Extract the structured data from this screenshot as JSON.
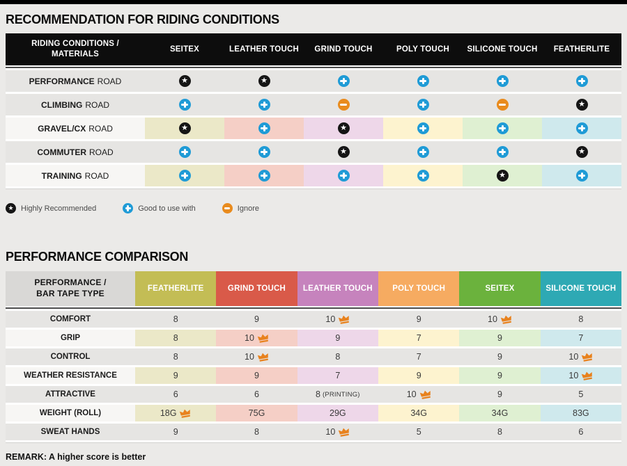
{
  "table1": {
    "title": "RECOMMENDATION FOR RIDING CONDITIONS",
    "header": {
      "label_line1": "RIDING CONDITIONS /",
      "label_line2": "MATERIALS"
    },
    "columns": [
      "SEITEX",
      "LEATHER TOUCH",
      "GRIND TOUCH",
      "POLY TOUCH",
      "SILICONE TOUCH",
      "FEATHERLITE"
    ],
    "cell_colors": [
      "#ebe8c8",
      "#f5cfc6",
      "#eed7e9",
      "#fdf3cf",
      "#dff0d2",
      "#cfe9ed"
    ],
    "rows": [
      {
        "condition": "PERFORMANCE",
        "suffix": "ROAD",
        "colored": false,
        "ratings": [
          "star",
          "star",
          "plus",
          "plus",
          "plus",
          "plus"
        ]
      },
      {
        "condition": "CLIMBING",
        "suffix": "ROAD",
        "colored": false,
        "ratings": [
          "plus",
          "plus",
          "minus",
          "plus",
          "minus",
          "star"
        ]
      },
      {
        "condition": "GRAVEL/CX",
        "suffix": "ROAD",
        "colored": true,
        "ratings": [
          "star",
          "plus",
          "star",
          "plus",
          "plus",
          "plus"
        ]
      },
      {
        "condition": "COMMUTER",
        "suffix": "ROAD",
        "colored": false,
        "ratings": [
          "plus",
          "plus",
          "star",
          "plus",
          "plus",
          "star"
        ]
      },
      {
        "condition": "TRAINING",
        "suffix": "ROAD",
        "colored": true,
        "ratings": [
          "plus",
          "plus",
          "plus",
          "plus",
          "star",
          "plus"
        ]
      }
    ]
  },
  "legend": {
    "items": [
      {
        "icon": "star",
        "label": "Highly Recommended"
      },
      {
        "icon": "plus",
        "label": "Good to use with"
      },
      {
        "icon": "minus",
        "label": "Ignore"
      }
    ]
  },
  "table2": {
    "title": "PERFORMANCE COMPARISON",
    "header": {
      "label_line1": "PERFORMANCE /",
      "label_line2": "BAR TAPE TYPE"
    },
    "columns": [
      {
        "name": "FEATHERLITE",
        "color": "#c3bd55",
        "pale": "#ebe8c8"
      },
      {
        "name": "GRIND TOUCH",
        "color": "#d95a49",
        "pale": "#f5cfc6"
      },
      {
        "name": "LEATHER TOUCH",
        "color": "#c683bd",
        "pale": "#eed7e9"
      },
      {
        "name": "POLY TOUCH",
        "color": "#f6ab61",
        "pale": "#fdf3cf"
      },
      {
        "name": "SEITEX",
        "color": "#6bb23d",
        "pale": "#dff0d2"
      },
      {
        "name": "SILICONE TOUCH",
        "color": "#2ea9b4",
        "pale": "#cfe9ed"
      }
    ],
    "rows": [
      {
        "metric": "COMFORT",
        "colored": false,
        "values": [
          {
            "v": "8"
          },
          {
            "v": "9"
          },
          {
            "v": "10",
            "crown": true
          },
          {
            "v": "9"
          },
          {
            "v": "10",
            "crown": true
          },
          {
            "v": "8"
          }
        ]
      },
      {
        "metric": "GRIP",
        "colored": true,
        "values": [
          {
            "v": "8"
          },
          {
            "v": "10",
            "crown": true
          },
          {
            "v": "9"
          },
          {
            "v": "7"
          },
          {
            "v": "9"
          },
          {
            "v": "7"
          }
        ]
      },
      {
        "metric": "CONTROL",
        "colored": false,
        "values": [
          {
            "v": "8"
          },
          {
            "v": "10",
            "crown": true
          },
          {
            "v": "8"
          },
          {
            "v": "7"
          },
          {
            "v": "9"
          },
          {
            "v": "10",
            "crown": true
          }
        ]
      },
      {
        "metric": "WEATHER RESISTANCE",
        "colored": true,
        "values": [
          {
            "v": "9"
          },
          {
            "v": "9"
          },
          {
            "v": "7"
          },
          {
            "v": "9"
          },
          {
            "v": "9"
          },
          {
            "v": "10",
            "crown": true
          }
        ]
      },
      {
        "metric": "ATTRACTIVE",
        "colored": false,
        "values": [
          {
            "v": "6"
          },
          {
            "v": "6"
          },
          {
            "v": "8",
            "note": "(PRINTING)"
          },
          {
            "v": "10",
            "crown": true
          },
          {
            "v": "9"
          },
          {
            "v": "5"
          }
        ]
      },
      {
        "metric": "WEIGHT (ROLL)",
        "colored": true,
        "values": [
          {
            "v": "18G",
            "crown": true
          },
          {
            "v": "75G"
          },
          {
            "v": "29G"
          },
          {
            "v": "34G"
          },
          {
            "v": "34G"
          },
          {
            "v": "83G"
          }
        ]
      },
      {
        "metric": "SWEAT HANDS",
        "colored": false,
        "values": [
          {
            "v": "9"
          },
          {
            "v": "8"
          },
          {
            "v": "10",
            "crown": true
          },
          {
            "v": "5"
          },
          {
            "v": "8"
          },
          {
            "v": "6"
          }
        ]
      }
    ]
  },
  "remark": "REMARK: A higher score is better",
  "colors": {
    "highly_recommended": "#151515",
    "good_to_use": "#1f9bd6",
    "ignore": "#e98b1d",
    "crown": "#e8821e",
    "row_gray": "#e6e5e3",
    "row_label_light": "#f7f6f4"
  }
}
